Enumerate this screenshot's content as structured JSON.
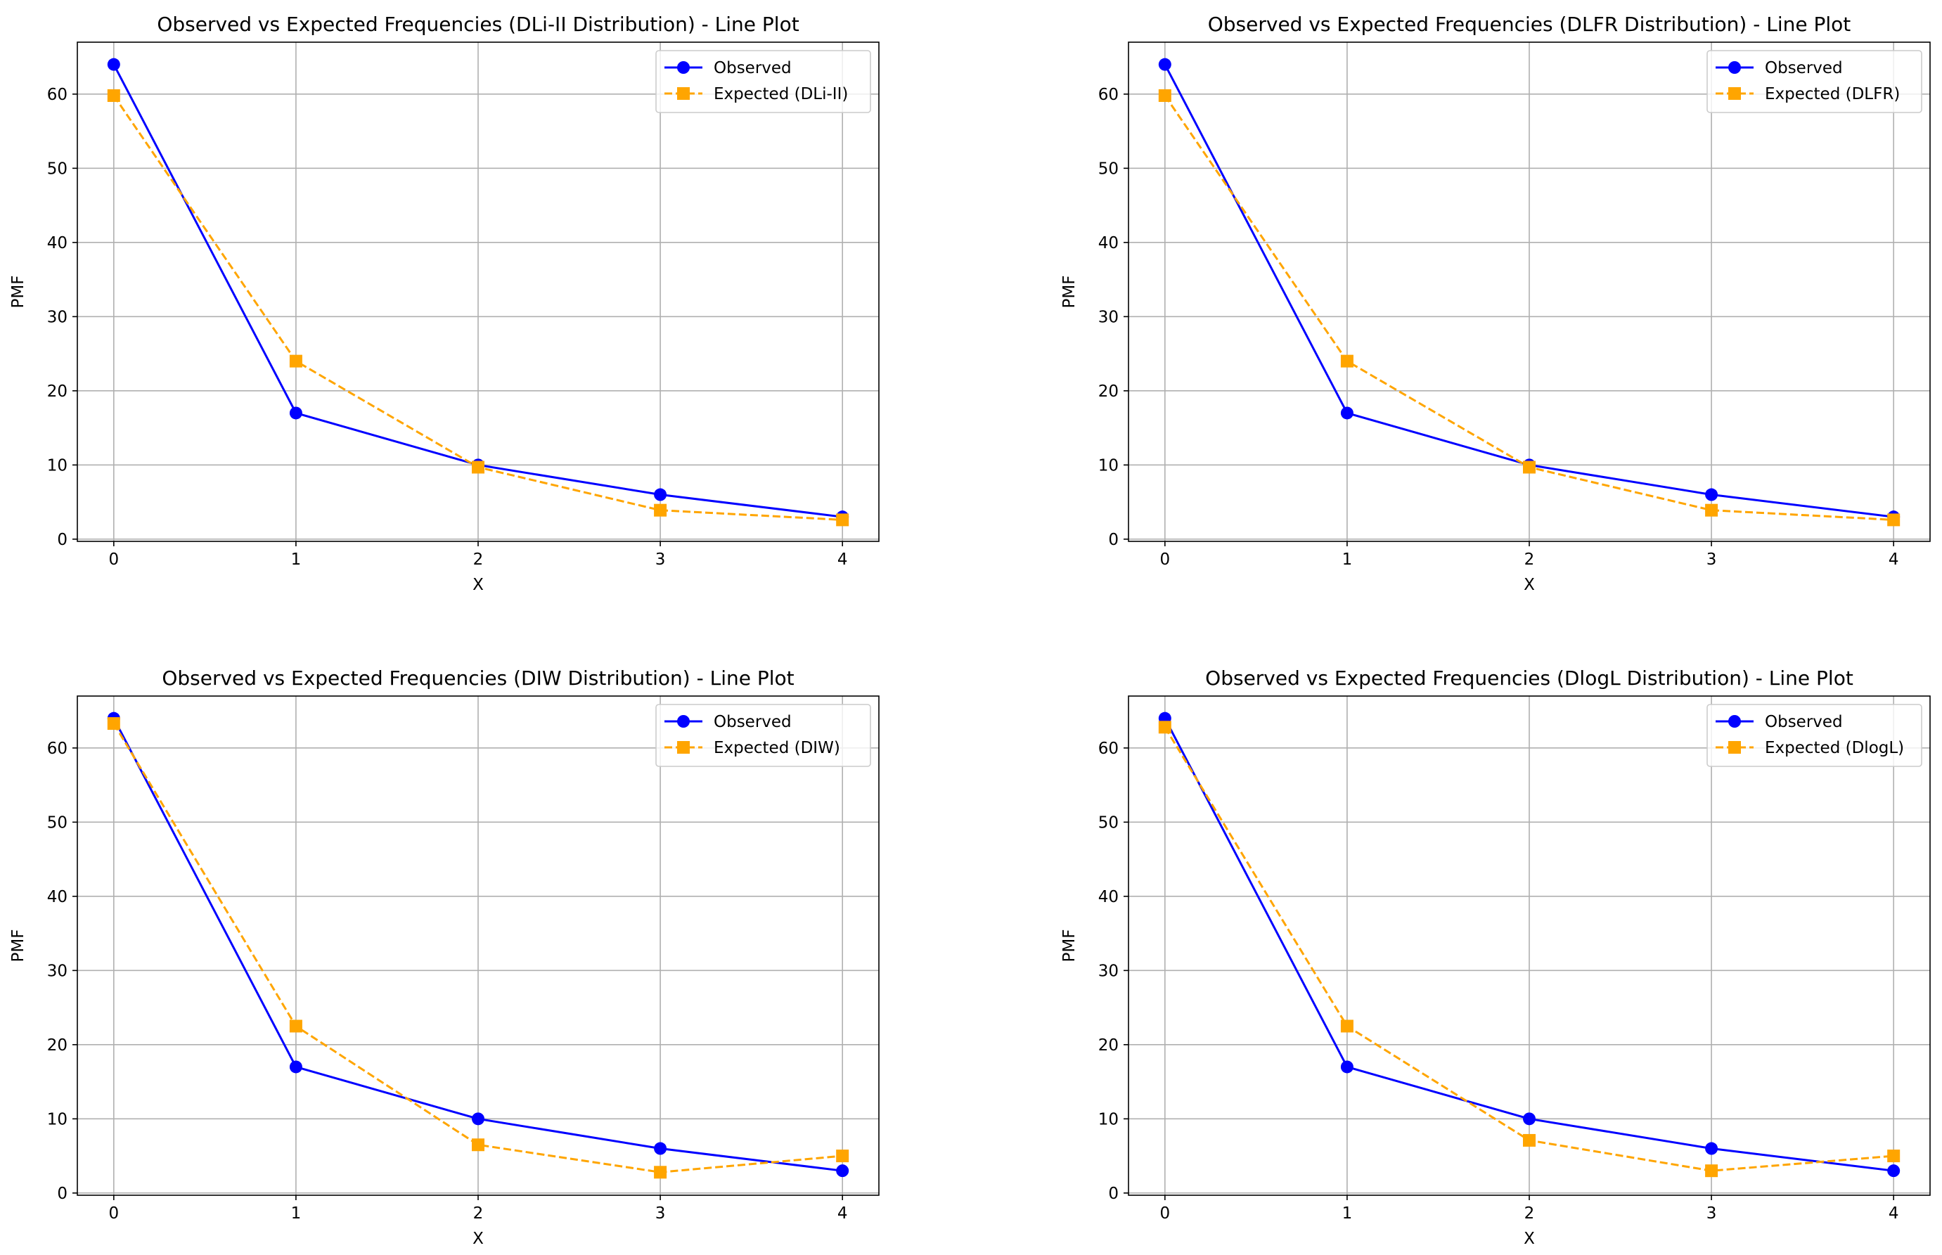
{
  "chart_data": [
    {
      "type": "line",
      "title": "Observed vs Expected Frequencies (DLi-II Distribution) - Line Plot",
      "xlabel": "X",
      "ylabel": "PMF",
      "x": [
        0,
        1,
        2,
        3,
        4
      ],
      "xticks": [
        0,
        1,
        2,
        3,
        4
      ],
      "yticks": [
        0,
        10,
        20,
        30,
        40,
        50,
        60
      ],
      "xlim": [
        -0.2,
        4.2
      ],
      "ylim": [
        -0.3,
        67
      ],
      "grid": true,
      "legend_position": "top-right",
      "series": [
        {
          "name": "Observed",
          "values": [
            64,
            17,
            10,
            6,
            3
          ],
          "color": "#0000ff",
          "marker": "circle",
          "linestyle": "solid"
        },
        {
          "name": "Expected (DLi-II)",
          "values": [
            59.8,
            24.0,
            9.7,
            3.9,
            2.6
          ],
          "color": "#ffa500",
          "marker": "square",
          "linestyle": "dashed"
        }
      ]
    },
    {
      "type": "line",
      "title": "Observed vs Expected Frequencies (DLFR Distribution) - Line Plot",
      "xlabel": "X",
      "ylabel": "PMF",
      "x": [
        0,
        1,
        2,
        3,
        4
      ],
      "xticks": [
        0,
        1,
        2,
        3,
        4
      ],
      "yticks": [
        0,
        10,
        20,
        30,
        40,
        50,
        60
      ],
      "xlim": [
        -0.2,
        4.2
      ],
      "ylim": [
        -0.3,
        67
      ],
      "grid": true,
      "legend_position": "top-right",
      "series": [
        {
          "name": "Observed",
          "values": [
            64,
            17,
            10,
            6,
            3
          ],
          "color": "#0000ff",
          "marker": "circle",
          "linestyle": "solid"
        },
        {
          "name": "Expected (DLFR)",
          "values": [
            59.8,
            24.0,
            9.7,
            3.9,
            2.6
          ],
          "color": "#ffa500",
          "marker": "square",
          "linestyle": "dashed"
        }
      ]
    },
    {
      "type": "line",
      "title": "Observed vs Expected Frequencies (DIW Distribution) - Line Plot",
      "xlabel": "X",
      "ylabel": "PMF",
      "x": [
        0,
        1,
        2,
        3,
        4
      ],
      "xticks": [
        0,
        1,
        2,
        3,
        4
      ],
      "yticks": [
        0,
        10,
        20,
        30,
        40,
        50,
        60
      ],
      "xlim": [
        -0.2,
        4.2
      ],
      "ylim": [
        -0.3,
        67
      ],
      "grid": true,
      "legend_position": "top-right",
      "series": [
        {
          "name": "Observed",
          "values": [
            64,
            17,
            10,
            6,
            3
          ],
          "color": "#0000ff",
          "marker": "circle",
          "linestyle": "solid"
        },
        {
          "name": "Expected (DIW)",
          "values": [
            63.3,
            22.5,
            6.5,
            2.8,
            5.0
          ],
          "color": "#ffa500",
          "marker": "square",
          "linestyle": "dashed"
        }
      ]
    },
    {
      "type": "line",
      "title": "Observed vs Expected Frequencies (DlogL Distribution) - Line Plot",
      "xlabel": "X",
      "ylabel": "PMF",
      "x": [
        0,
        1,
        2,
        3,
        4
      ],
      "xticks": [
        0,
        1,
        2,
        3,
        4
      ],
      "yticks": [
        0,
        10,
        20,
        30,
        40,
        50,
        60
      ],
      "xlim": [
        -0.2,
        4.2
      ],
      "ylim": [
        -0.3,
        67
      ],
      "grid": true,
      "legend_position": "top-right",
      "series": [
        {
          "name": "Observed",
          "values": [
            64,
            17,
            10,
            6,
            3
          ],
          "color": "#0000ff",
          "marker": "circle",
          "linestyle": "solid"
        },
        {
          "name": "Expected (DlogL)",
          "values": [
            62.8,
            22.5,
            7.1,
            3.0,
            5.0
          ],
          "color": "#ffa500",
          "marker": "square",
          "linestyle": "dashed"
        }
      ]
    }
  ]
}
